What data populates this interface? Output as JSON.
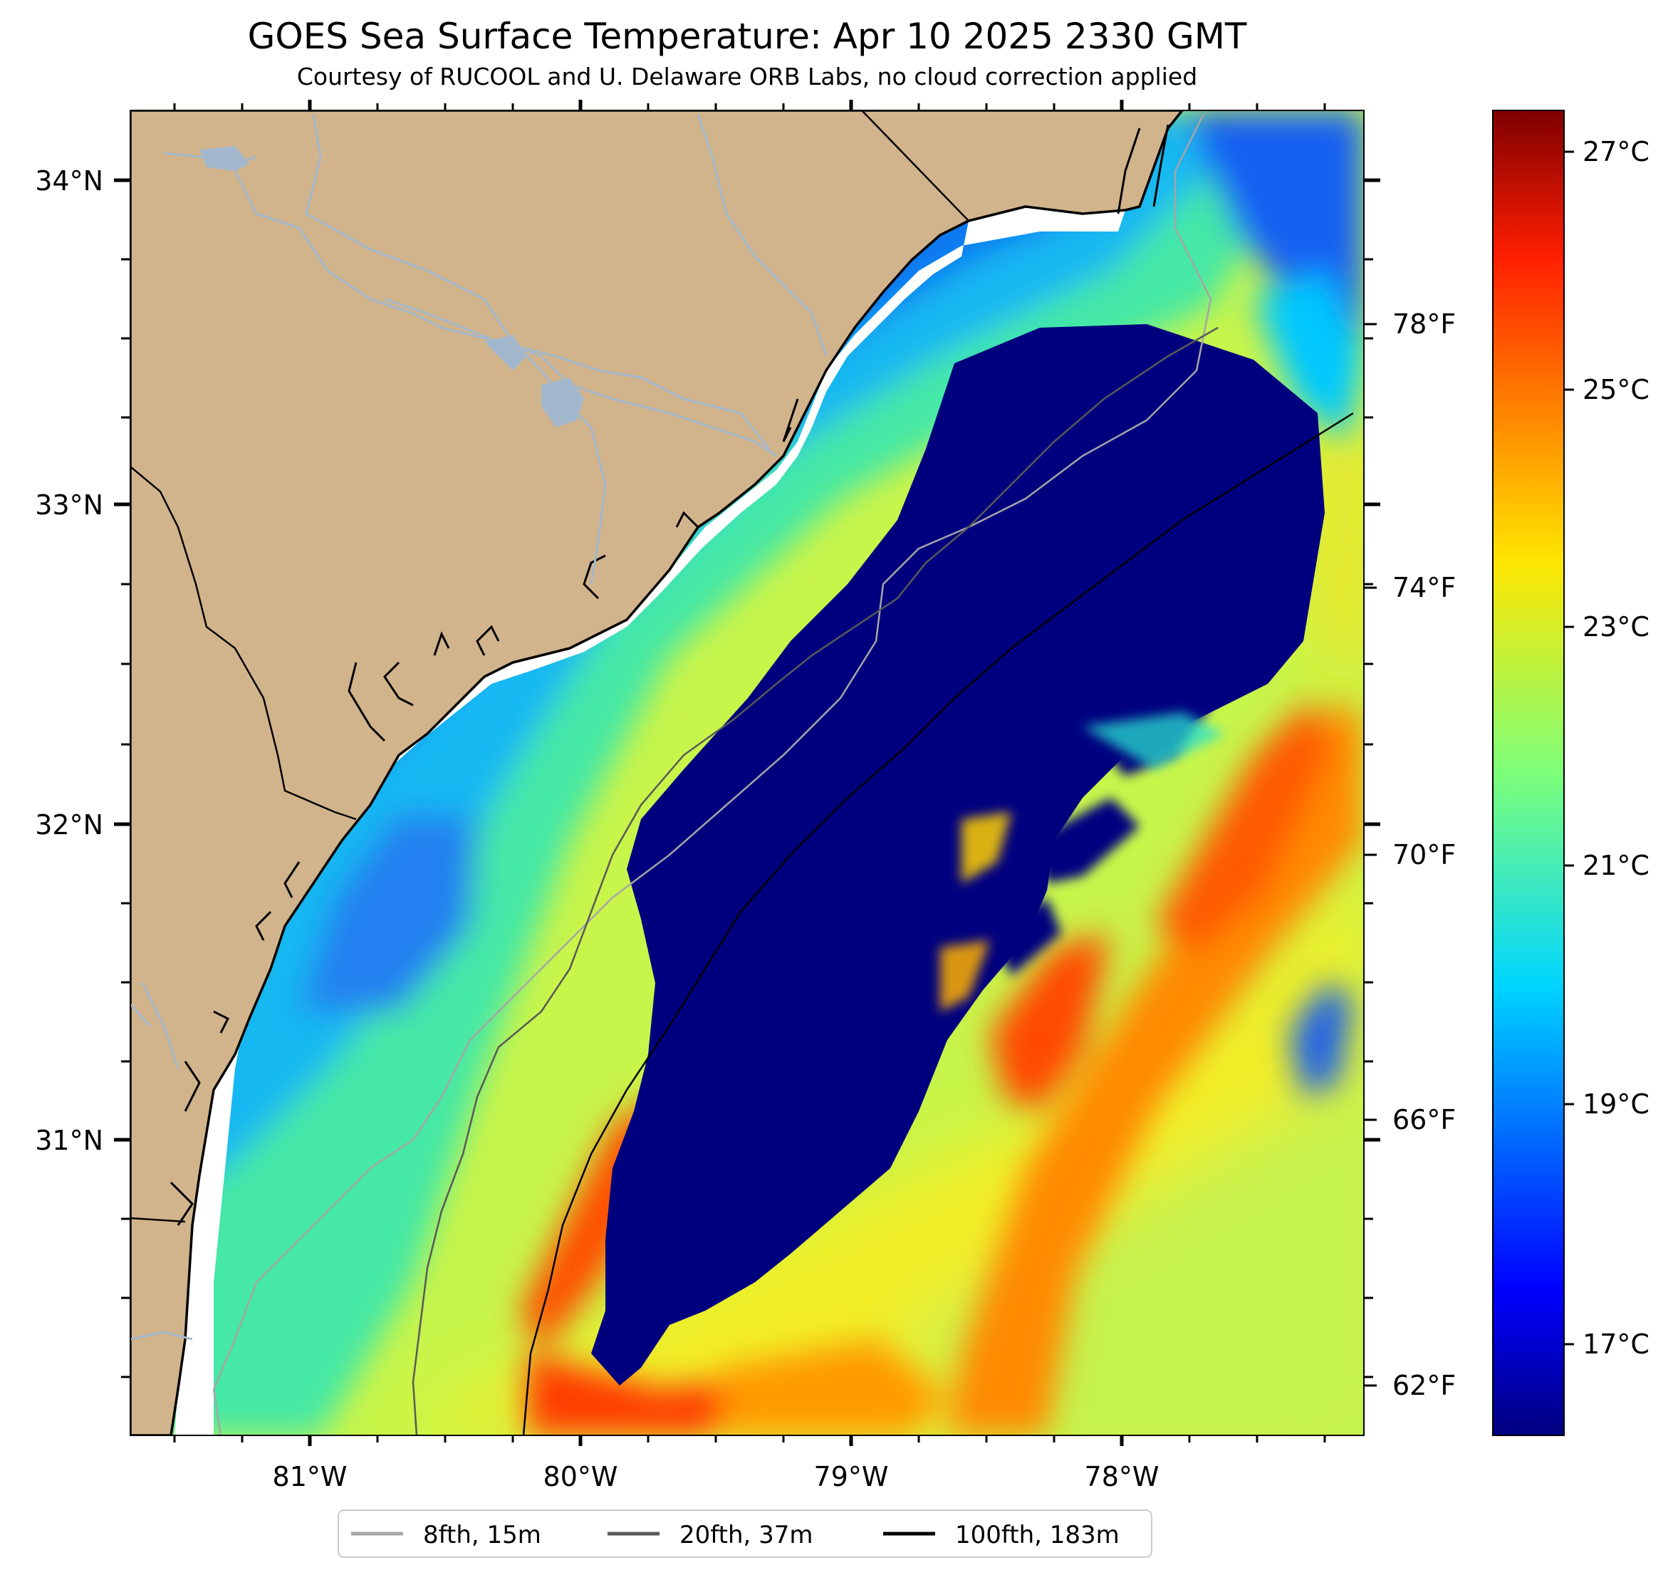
{
  "title": "GOES Sea Surface Temperature: Apr 10 2025 2330 GMT",
  "subtitle": "Courtesy of RUCOOL and U. Delaware ORB Labs, no cloud correction applied",
  "map": {
    "lon_range": [
      -81.67,
      -77.12
    ],
    "lat_range": [
      30.15,
      34.22
    ],
    "lat_ticks": [
      "34°N",
      "33°N",
      "32°N",
      "31°N"
    ],
    "lon_ticks": [
      "81°W",
      "80°W",
      "79°W",
      "78°W"
    ],
    "colors": {
      "land": "#d2b48c",
      "coastline": "#000000",
      "rivers": "#a3b8cc",
      "no_data_near_coast": "#ffffff"
    }
  },
  "colorbar": {
    "colormap": "jet",
    "range_celsius": [
      16.1,
      27.3
    ],
    "celsius_ticks": [
      "27°C",
      "25°C",
      "23°C",
      "21°C",
      "19°C",
      "17°C"
    ],
    "fahrenheit_ticks": [
      "78°F",
      "74°F",
      "70°F",
      "66°F",
      "62°F"
    ]
  },
  "legend": {
    "items": [
      {
        "label": "8fth, 15m",
        "color": "#a6a6a6"
      },
      {
        "label": "20fth, 37m",
        "color": "#595959"
      },
      {
        "label": "100fth, 183m",
        "color": "#000000"
      }
    ]
  }
}
